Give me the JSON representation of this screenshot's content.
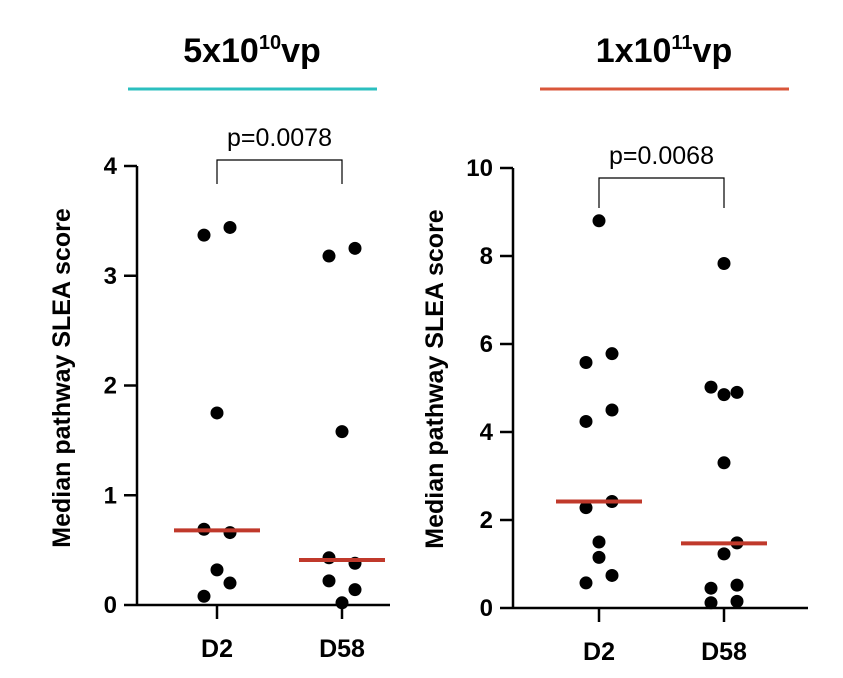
{
  "chart_data": [
    {
      "type": "scatter",
      "title": "5x10",
      "title_superscript": "10",
      "title_suffix": "vp",
      "title_underline_color": "#2bbfbf",
      "ylabel": "Median pathway SLEA score",
      "ylim": [
        0,
        4
      ],
      "yticks": [
        0,
        1,
        2,
        3,
        4
      ],
      "categories": [
        "D2",
        "D58"
      ],
      "series": [
        {
          "name": "D2",
          "points": [
            {
              "offset": -1,
              "value": 0.08
            },
            {
              "offset": -1,
              "value": 3.37
            },
            {
              "offset": 1,
              "value": 3.44
            },
            {
              "offset": 0,
              "value": 1.75
            },
            {
              "offset": -1,
              "value": 0.69
            },
            {
              "offset": 1,
              "value": 0.66
            },
            {
              "offset": 0,
              "value": 0.32
            },
            {
              "offset": 1,
              "value": 0.2
            }
          ],
          "median": 0.68
        },
        {
          "name": "D58",
          "points": [
            {
              "offset": -1,
              "value": 3.18
            },
            {
              "offset": 1,
              "value": 3.25
            },
            {
              "offset": 0,
              "value": 1.58
            },
            {
              "offset": -1,
              "value": 0.43
            },
            {
              "offset": 1,
              "value": 0.38
            },
            {
              "offset": -1,
              "value": 0.22
            },
            {
              "offset": 1,
              "value": 0.14
            },
            {
              "offset": 0,
              "value": 0.02
            }
          ],
          "median": 0.41
        }
      ],
      "median_color": "#c0392b",
      "annotation": "p=0.0078"
    },
    {
      "type": "scatter",
      "title": "1x10",
      "title_superscript": "11",
      "title_suffix": "vp",
      "title_underline_color": "#d9563a",
      "ylabel": "Median pathway SLEA score",
      "ylim": [
        0,
        10
      ],
      "yticks": [
        0,
        2,
        4,
        6,
        8,
        10
      ],
      "categories": [
        "D2",
        "D58"
      ],
      "series": [
        {
          "name": "D2",
          "points": [
            {
              "offset": 0,
              "value": 8.8
            },
            {
              "offset": -1,
              "value": 5.58
            },
            {
              "offset": 1,
              "value": 5.78
            },
            {
              "offset": -1,
              "value": 4.24
            },
            {
              "offset": 1,
              "value": 4.5
            },
            {
              "offset": -1,
              "value": 2.28
            },
            {
              "offset": 1,
              "value": 2.42
            },
            {
              "offset": 0,
              "value": 1.5
            },
            {
              "offset": 0,
              "value": 1.15
            },
            {
              "offset": 1,
              "value": 0.74
            },
            {
              "offset": -1,
              "value": 0.57
            }
          ],
          "median": 2.42
        },
        {
          "name": "D58",
          "points": [
            {
              "offset": 0,
              "value": 7.83
            },
            {
              "offset": -1,
              "value": 5.02
            },
            {
              "offset": 0,
              "value": 4.85
            },
            {
              "offset": 1,
              "value": 4.9
            },
            {
              "offset": 0,
              "value": 3.3
            },
            {
              "offset": 1,
              "value": 1.48
            },
            {
              "offset": 0,
              "value": 1.23
            },
            {
              "offset": -1,
              "value": 0.45
            },
            {
              "offset": 1,
              "value": 0.52
            },
            {
              "offset": -1,
              "value": 0.12
            },
            {
              "offset": 1,
              "value": 0.15
            }
          ],
          "median": 1.47
        }
      ],
      "median_color": "#c0392b",
      "annotation": "p=0.0068"
    }
  ]
}
